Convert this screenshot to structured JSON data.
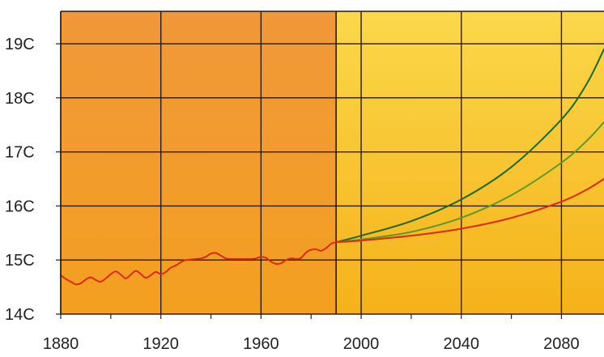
{
  "chart_data": {
    "type": "line",
    "title": "",
    "xlabel": "",
    "ylabel": "",
    "xlim": [
      1880,
      2097
    ],
    "ylim": [
      14,
      19.6
    ],
    "x_ticks": [
      {
        "value": 1880,
        "label": "1880"
      },
      {
        "value": 1920,
        "label": "1920"
      },
      {
        "value": 1960,
        "label": "1960"
      },
      {
        "value": 2000,
        "label": "2000"
      },
      {
        "value": 2040,
        "label": "2040"
      },
      {
        "value": 2080,
        "label": "2080"
      }
    ],
    "y_ticks": [
      {
        "value": 14,
        "label": "14C"
      },
      {
        "value": 15,
        "label": "15C"
      },
      {
        "value": 16,
        "label": "16C"
      },
      {
        "value": 17,
        "label": "17C"
      },
      {
        "value": 18,
        "label": "18C"
      },
      {
        "value": 19,
        "label": "19C"
      }
    ],
    "grid": true,
    "shaded_regions": [
      {
        "from": 1880,
        "to": 1990,
        "color": "#f09a2a"
      },
      {
        "from": 1990,
        "to": 2097,
        "color": "#f8c830"
      }
    ],
    "series": [
      {
        "color": "#dd2a10",
        "points": [
          [
            1880,
            14.72
          ],
          [
            1882,
            14.65
          ],
          [
            1884,
            14.6
          ],
          [
            1886,
            14.55
          ],
          [
            1888,
            14.57
          ],
          [
            1890,
            14.64
          ],
          [
            1892,
            14.68
          ],
          [
            1894,
            14.63
          ],
          [
            1896,
            14.6
          ],
          [
            1898,
            14.66
          ],
          [
            1900,
            14.74
          ],
          [
            1902,
            14.79
          ],
          [
            1904,
            14.73
          ],
          [
            1906,
            14.66
          ],
          [
            1908,
            14.73
          ],
          [
            1910,
            14.8
          ],
          [
            1912,
            14.74
          ],
          [
            1914,
            14.67
          ],
          [
            1916,
            14.72
          ],
          [
            1918,
            14.78
          ],
          [
            1920,
            14.74
          ],
          [
            1922,
            14.78
          ],
          [
            1924,
            14.86
          ],
          [
            1926,
            14.9
          ],
          [
            1928,
            14.96
          ],
          [
            1930,
            15.0
          ],
          [
            1932,
            15.01
          ],
          [
            1934,
            15.02
          ],
          [
            1936,
            15.03
          ],
          [
            1938,
            15.06
          ],
          [
            1940,
            15.12
          ],
          [
            1942,
            15.13
          ],
          [
            1944,
            15.08
          ],
          [
            1946,
            15.03
          ],
          [
            1948,
            15.02
          ],
          [
            1950,
            15.02
          ],
          [
            1952,
            15.02
          ],
          [
            1954,
            15.02
          ],
          [
            1956,
            15.02
          ],
          [
            1958,
            15.03
          ],
          [
            1960,
            15.06
          ],
          [
            1962,
            15.04
          ],
          [
            1964,
            14.97
          ],
          [
            1966,
            14.93
          ],
          [
            1968,
            14.94
          ],
          [
            1970,
            15.0
          ],
          [
            1972,
            15.03
          ],
          [
            1974,
            15.02
          ],
          [
            1976,
            15.04
          ],
          [
            1978,
            15.14
          ],
          [
            1980,
            15.19
          ],
          [
            1982,
            15.2
          ],
          [
            1984,
            15.17
          ],
          [
            1986,
            15.22
          ],
          [
            1988,
            15.3
          ],
          [
            1990,
            15.33
          ]
        ]
      },
      {
        "color": "#1a6a2a",
        "points": [
          [
            1990,
            15.33
          ],
          [
            2000,
            15.45
          ],
          [
            2020,
            15.72
          ],
          [
            2040,
            16.12
          ],
          [
            2060,
            16.72
          ],
          [
            2080,
            17.6
          ],
          [
            2090,
            18.25
          ],
          [
            2097,
            18.9
          ]
        ]
      },
      {
        "color": "#5a9a2a",
        "points": [
          [
            1990,
            15.33
          ],
          [
            2000,
            15.38
          ],
          [
            2020,
            15.52
          ],
          [
            2040,
            15.78
          ],
          [
            2060,
            16.2
          ],
          [
            2080,
            16.8
          ],
          [
            2090,
            17.2
          ],
          [
            2097,
            17.55
          ]
        ]
      },
      {
        "color": "#dd2a10",
        "points": [
          [
            1990,
            15.33
          ],
          [
            2000,
            15.36
          ],
          [
            2020,
            15.45
          ],
          [
            2040,
            15.58
          ],
          [
            2060,
            15.78
          ],
          [
            2080,
            16.08
          ],
          [
            2090,
            16.3
          ],
          [
            2097,
            16.5
          ]
        ]
      }
    ]
  }
}
